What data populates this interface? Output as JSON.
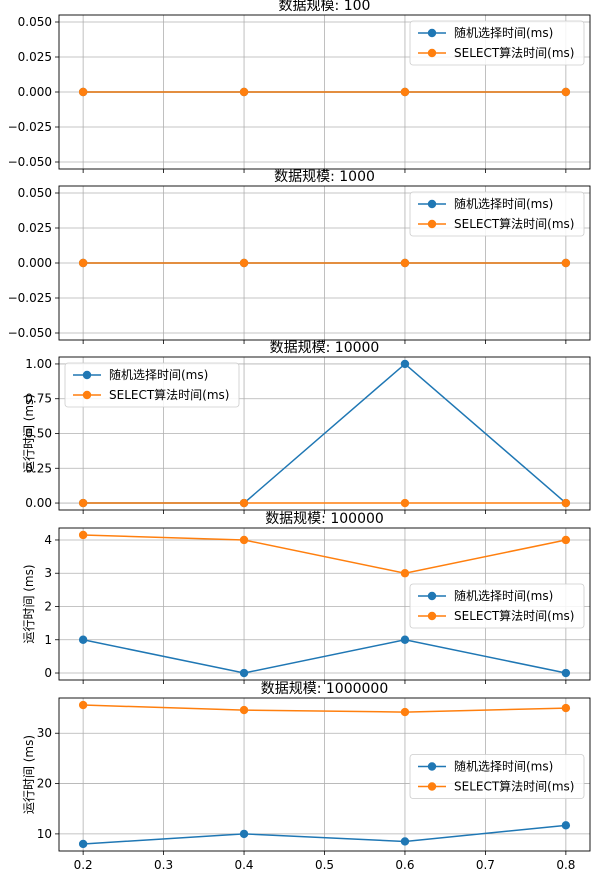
{
  "chart_data": [
    {
      "type": "line",
      "title": "数据规模: 100",
      "xlabel": "",
      "ylabel": "",
      "x": [
        0.2,
        0.4,
        0.6,
        0.8
      ],
      "series": [
        {
          "name": "随机选择时间(ms)",
          "color": "#1f77b4",
          "values": [
            0,
            0,
            0,
            0
          ]
        },
        {
          "name": "SELECT算法时间(ms)",
          "color": "#ff7f0e",
          "values": [
            0,
            0,
            0,
            0
          ]
        }
      ],
      "xlim": [
        0.17,
        0.83
      ],
      "ylim": [
        -0.055,
        0.055
      ],
      "yticks": [
        -0.05,
        -0.025,
        0.0,
        0.025,
        0.05
      ],
      "ytick_labels": [
        "−0.050",
        "−0.025",
        "0.000",
        "0.025",
        "0.050"
      ],
      "grid": true,
      "legend": "upper-right"
    },
    {
      "type": "line",
      "title": "数据规模: 1000",
      "xlabel": "",
      "ylabel": "",
      "x": [
        0.2,
        0.4,
        0.6,
        0.8
      ],
      "series": [
        {
          "name": "随机选择时间(ms)",
          "color": "#1f77b4",
          "values": [
            0,
            0,
            0,
            0
          ]
        },
        {
          "name": "SELECT算法时间(ms)",
          "color": "#ff7f0e",
          "values": [
            0,
            0,
            0,
            0
          ]
        }
      ],
      "xlim": [
        0.17,
        0.83
      ],
      "ylim": [
        -0.055,
        0.055
      ],
      "yticks": [
        -0.05,
        -0.025,
        0.0,
        0.025,
        0.05
      ],
      "ytick_labels": [
        "−0.050",
        "−0.025",
        "0.000",
        "0.025",
        "0.050"
      ],
      "grid": true,
      "legend": "upper-right"
    },
    {
      "type": "line",
      "title": "数据规模: 10000",
      "xlabel": "",
      "ylabel": "运行时间 (ms)",
      "x": [
        0.2,
        0.4,
        0.6,
        0.8
      ],
      "series": [
        {
          "name": "随机选择时间(ms)",
          "color": "#1f77b4",
          "values": [
            0,
            0,
            1,
            0
          ]
        },
        {
          "name": "SELECT算法时间(ms)",
          "color": "#ff7f0e",
          "values": [
            0,
            0,
            0,
            0
          ]
        }
      ],
      "xlim": [
        0.17,
        0.83
      ],
      "ylim": [
        -0.05,
        1.05
      ],
      "yticks": [
        0.0,
        0.25,
        0.5,
        0.75,
        1.0
      ],
      "ytick_labels": [
        "0.00",
        "0.25",
        "0.50",
        "0.75",
        "1.00"
      ],
      "grid": true,
      "legend": "upper-left"
    },
    {
      "type": "line",
      "title": "数据规模: 100000",
      "xlabel": "",
      "ylabel": "运行时间 (ms)",
      "x": [
        0.2,
        0.4,
        0.6,
        0.8
      ],
      "series": [
        {
          "name": "随机选择时间(ms)",
          "color": "#1f77b4",
          "values": [
            1,
            0,
            1,
            0
          ]
        },
        {
          "name": "SELECT算法时间(ms)",
          "color": "#ff7f0e",
          "values": [
            4.15,
            4.0,
            3.0,
            4.0
          ]
        }
      ],
      "xlim": [
        0.17,
        0.83
      ],
      "ylim": [
        -0.21,
        4.36
      ],
      "yticks": [
        0,
        1,
        2,
        3,
        4
      ],
      "ytick_labels": [
        "0",
        "1",
        "2",
        "3",
        "4"
      ],
      "grid": true,
      "legend": "center-right"
    },
    {
      "type": "line",
      "title": "数据规模: 1000000",
      "xlabel": "",
      "ylabel": "运行时间 (ms)",
      "x": [
        0.2,
        0.4,
        0.6,
        0.8
      ],
      "xticks": [
        0.2,
        0.3,
        0.4,
        0.5,
        0.6,
        0.7,
        0.8
      ],
      "xtick_labels": [
        "0.2",
        "0.3",
        "0.4",
        "0.5",
        "0.6",
        "0.7",
        "0.8"
      ],
      "series": [
        {
          "name": "随机选择时间(ms)",
          "color": "#1f77b4",
          "values": [
            8.0,
            10.0,
            8.5,
            11.7
          ]
        },
        {
          "name": "SELECT算法时间(ms)",
          "color": "#ff7f0e",
          "values": [
            35.6,
            34.6,
            34.2,
            35.0
          ]
        }
      ],
      "xlim": [
        0.17,
        0.83
      ],
      "ylim": [
        6.6,
        37.0
      ],
      "yticks": [
        10,
        20,
        30
      ],
      "ytick_labels": [
        "10",
        "20",
        "30"
      ],
      "grid": true,
      "legend": "center-right"
    }
  ]
}
